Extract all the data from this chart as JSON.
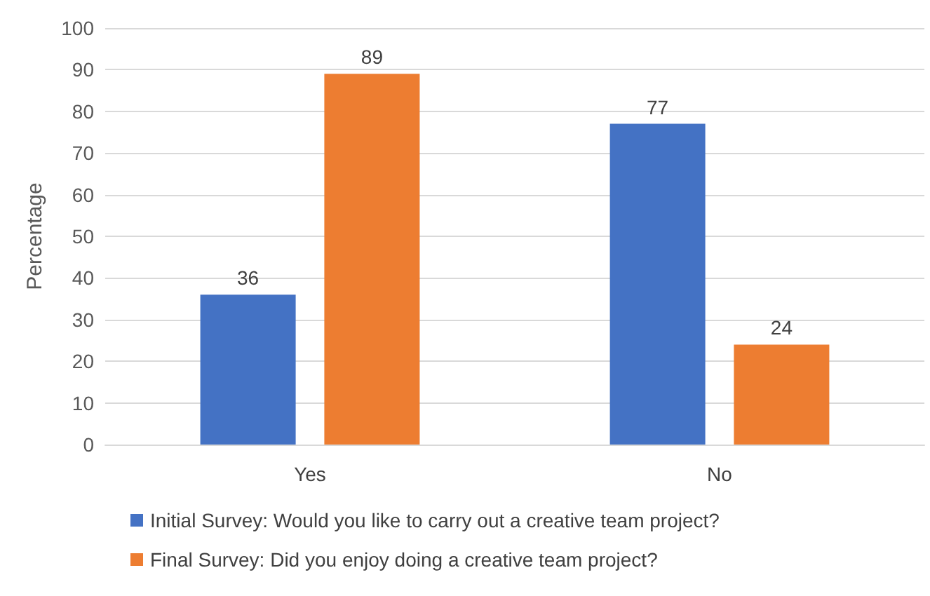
{
  "chart_data": {
    "type": "bar",
    "ylabel": "Percentage",
    "categories": [
      "Yes",
      "No"
    ],
    "series": [
      {
        "name": "Initial Survey: Would you like to carry out a creative team project?",
        "color": "#4472c4",
        "values": [
          36,
          77
        ]
      },
      {
        "name": "Final Survey: Did you enjoy doing a creative team project?",
        "color": "#ed7d31",
        "values": [
          89,
          24
        ]
      }
    ],
    "ylim": [
      0,
      100
    ],
    "yticks": [
      0,
      10,
      20,
      30,
      40,
      50,
      60,
      70,
      80,
      90,
      100
    ],
    "grid": "y",
    "legend": "bottom",
    "data_labels": true
  }
}
